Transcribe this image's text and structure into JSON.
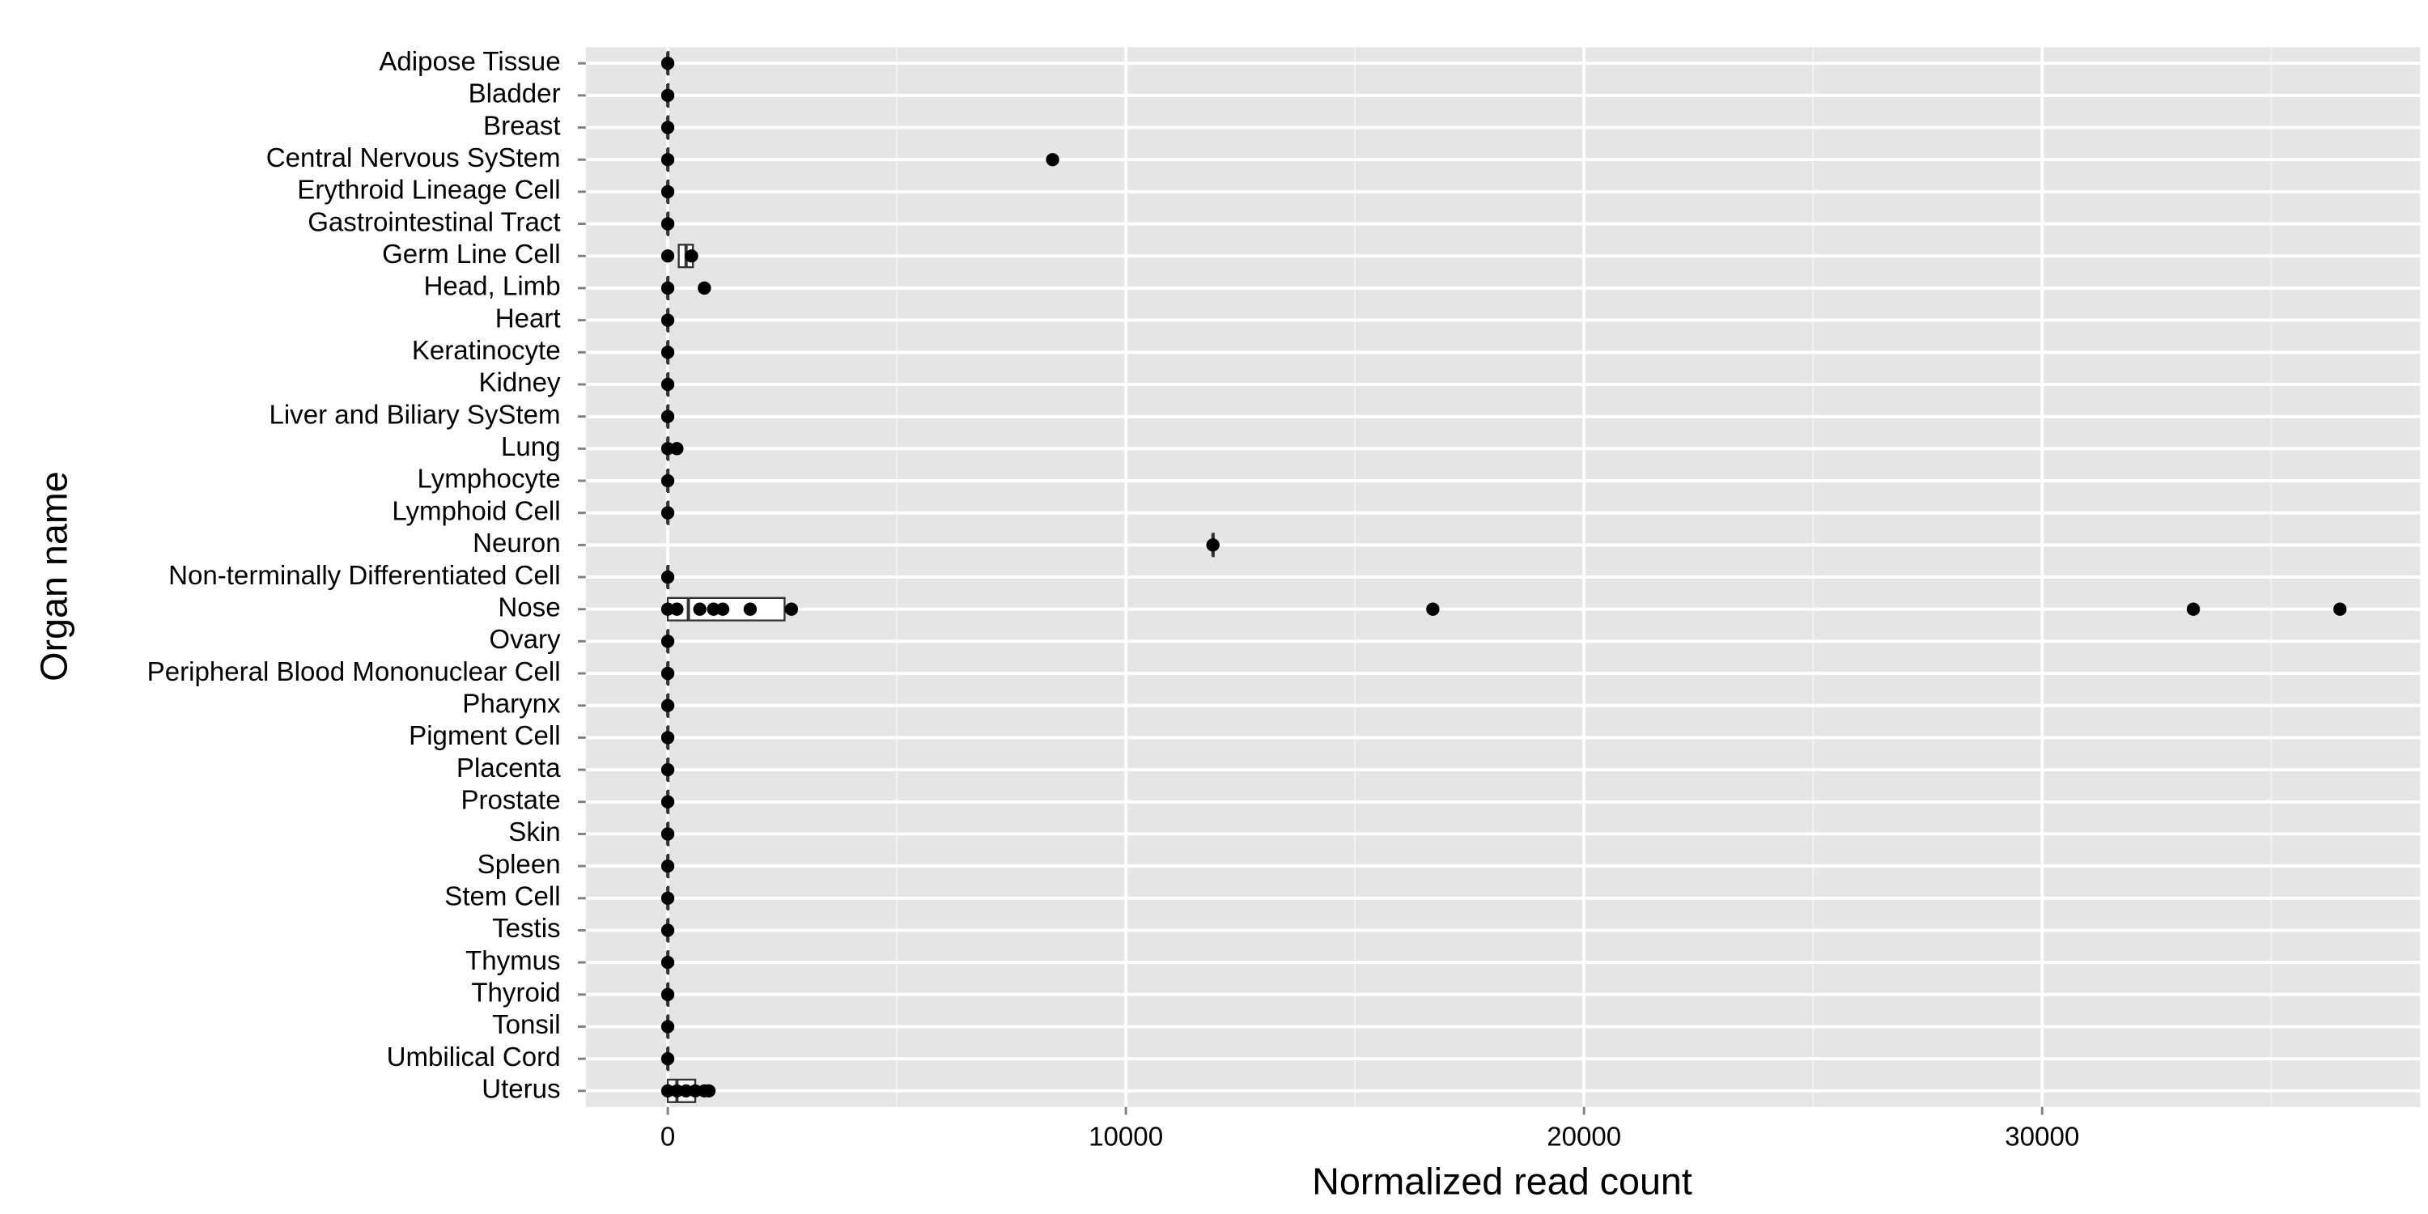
{
  "chart_data": {
    "type": "box",
    "x_label": "Normalized read count",
    "y_label": "Organ name",
    "categories": [
      "Adipose Tissue",
      "Bladder",
      "Breast",
      "Central Nervous SyStem",
      "Erythroid Lineage Cell",
      "Gastrointestinal Tract",
      "Germ Line Cell",
      "Head, Limb",
      "Heart",
      "Keratinocyte",
      "Kidney",
      "Liver and Biliary SyStem",
      "Lung",
      "Lymphocyte",
      "Lymphoid Cell",
      "Neuron",
      "Non-terminally Differentiated Cell",
      "Nose",
      "Ovary",
      "Peripheral Blood Mononuclear Cell",
      "Pharynx",
      "Pigment Cell",
      "Placenta",
      "Prostate",
      "Skin",
      "Spleen",
      "Stem Cell",
      "Testis",
      "Thymus",
      "Thyroid",
      "Tonsil",
      "Umbilical Cord",
      "Uterus"
    ],
    "points": [
      [
        0
      ],
      [
        0
      ],
      [
        0
      ],
      [
        0,
        8400
      ],
      [
        0
      ],
      [
        0
      ],
      [
        0,
        520
      ],
      [
        0,
        800
      ],
      [
        0
      ],
      [
        0
      ],
      [
        0
      ],
      [
        0
      ],
      [
        0,
        200
      ],
      [
        0
      ],
      [
        0
      ],
      [
        11900
      ],
      [
        0
      ],
      [
        0,
        200,
        700,
        1000,
        1200,
        1800,
        2700,
        16700,
        33300,
        36500
      ],
      [
        0
      ],
      [
        0
      ],
      [
        0
      ],
      [
        0
      ],
      [
        0
      ],
      [
        0
      ],
      [
        0
      ],
      [
        0
      ],
      [
        0
      ],
      [
        0
      ],
      [
        0
      ],
      [
        0
      ],
      [
        0
      ],
      [
        0
      ],
      [
        0,
        200,
        400,
        600,
        800,
        900
      ]
    ],
    "boxes": [
      [
        0,
        0,
        0
      ],
      [
        0,
        0,
        0
      ],
      [
        0,
        0,
        0
      ],
      [
        0,
        0,
        0
      ],
      [
        0,
        0,
        0
      ],
      [
        0,
        0,
        0
      ],
      [
        240,
        400,
        550
      ],
      [
        0,
        0,
        0
      ],
      [
        0,
        0,
        0
      ],
      [
        0,
        0,
        0
      ],
      [
        0,
        0,
        0
      ],
      [
        0,
        0,
        0
      ],
      [
        0,
        0,
        0
      ],
      [
        0,
        0,
        0
      ],
      [
        0,
        0,
        0
      ],
      [
        11900,
        11900,
        11900
      ],
      [
        0,
        0,
        0
      ],
      [
        0,
        450,
        2550
      ],
      [
        0,
        0,
        0
      ],
      [
        0,
        0,
        0
      ],
      [
        0,
        0,
        0
      ],
      [
        0,
        0,
        0
      ],
      [
        0,
        0,
        0
      ],
      [
        0,
        0,
        0
      ],
      [
        0,
        0,
        0
      ],
      [
        0,
        0,
        0
      ],
      [
        0,
        0,
        0
      ],
      [
        0,
        0,
        0
      ],
      [
        0,
        0,
        0
      ],
      [
        0,
        0,
        0
      ],
      [
        0,
        0,
        0
      ],
      [
        0,
        0,
        0
      ],
      [
        0,
        200,
        600
      ]
    ],
    "xlim": [
      -1790,
      38250
    ],
    "xticks": [
      0,
      10000,
      20000,
      30000
    ],
    "panel_color": "#e5e5e5",
    "grid": true,
    "point_color": "#000000"
  }
}
